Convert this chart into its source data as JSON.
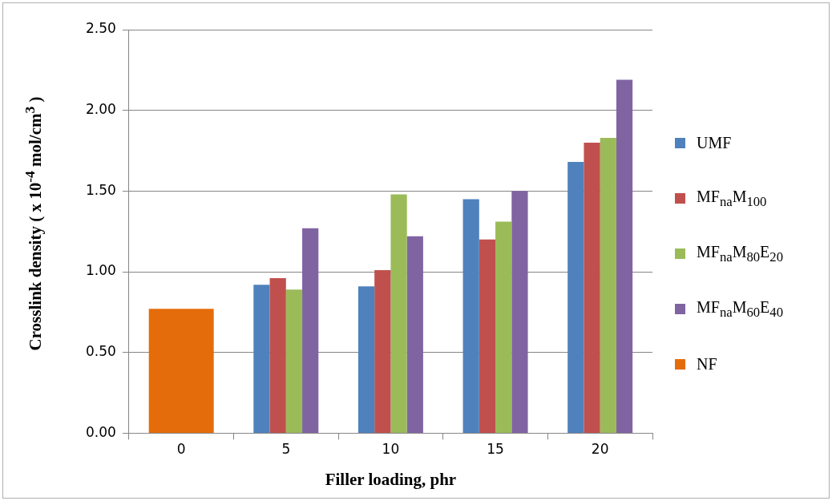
{
  "chart_data": {
    "type": "bar",
    "xlabel": "Filler loading, phr",
    "ylabel": "Crosslink density ( x 10$^{-4}$ mol/cm$^{3}$ )",
    "categories": [
      "0",
      "5",
      "10",
      "15",
      "20"
    ],
    "series": [
      {
        "name": "UMF",
        "color": "#4f81bd",
        "values": [
          null,
          0.92,
          0.91,
          1.45,
          1.68
        ]
      },
      {
        "name": "MF$_{na}$M$_{100}$",
        "color": "#c0504d",
        "values": [
          null,
          0.96,
          1.01,
          1.2,
          1.8
        ]
      },
      {
        "name": "MF$_{na}$M$_{80}$E$_{20}$",
        "color": "#9bbb59",
        "values": [
          null,
          0.89,
          1.48,
          1.31,
          1.83
        ]
      },
      {
        "name": "MF$_{na}$M$_{60}$E$_{40}$",
        "color": "#8064a2",
        "values": [
          null,
          1.27,
          1.22,
          1.5,
          2.19
        ]
      },
      {
        "name": "NF",
        "color": "#e46c0a",
        "values": [
          0.77,
          null,
          null,
          null,
          null
        ]
      }
    ],
    "ylim": [
      0,
      2.5
    ],
    "yticks": [
      {
        "value": 0,
        "label": "0.00"
      },
      {
        "value": 0.5,
        "label": "0.50"
      },
      {
        "value": 1,
        "label": "1.00"
      },
      {
        "value": 1.5,
        "label": "1.50"
      },
      {
        "value": 2,
        "label": "2.00"
      },
      {
        "value": 2.5,
        "label": "2.50"
      }
    ],
    "grid": "y",
    "legend": "right"
  }
}
